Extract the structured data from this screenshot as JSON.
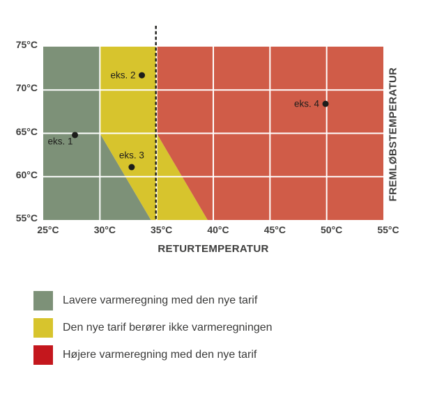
{
  "chart_data": {
    "type": "scatter",
    "title": "",
    "xlabel": "RETURTEMPERATUR",
    "ylabel": "FREMLØBSTEMPERATUR",
    "xlim": [
      25,
      55
    ],
    "ylim": [
      55,
      75
    ],
    "x_ticks": [
      {
        "v": 25,
        "label": "25°C"
      },
      {
        "v": 30,
        "label": "30°C"
      },
      {
        "v": 35,
        "label": "35°C"
      },
      {
        "v": 40,
        "label": "40°C"
      },
      {
        "v": 45,
        "label": "45°C"
      },
      {
        "v": 50,
        "label": "50°C"
      },
      {
        "v": 55,
        "label": "55°C"
      }
    ],
    "y_ticks": [
      {
        "v": 55,
        "label": "55°C"
      },
      {
        "v": 60,
        "label": "60°C"
      },
      {
        "v": 65,
        "label": "65°C"
      },
      {
        "v": 70,
        "label": "70°C"
      },
      {
        "v": 75,
        "label": "75°C"
      }
    ],
    "grid": {
      "color": "#FFFFFF",
      "inner_x": [
        30,
        35,
        40,
        45,
        50
      ],
      "inner_y": [
        60,
        65,
        70
      ]
    },
    "zones": [
      {
        "name": "lavere-varmeregning",
        "color": "#7D9178",
        "points": [
          [
            25,
            75
          ],
          [
            30,
            75
          ],
          [
            30,
            65
          ],
          [
            34.5,
            55
          ],
          [
            25,
            55
          ]
        ]
      },
      {
        "name": "uaendret-varmeregning",
        "color": "#D7C42D",
        "points": [
          [
            30,
            75
          ],
          [
            35,
            75
          ],
          [
            35,
            65
          ],
          [
            39.5,
            55
          ],
          [
            34.5,
            55
          ],
          [
            30,
            65
          ]
        ]
      },
      {
        "name": "hoejere-varmeregning",
        "color": "#D05C48",
        "points": [
          [
            35,
            75
          ],
          [
            55,
            75
          ],
          [
            55,
            55
          ],
          [
            39.5,
            55
          ],
          [
            35,
            65
          ]
        ]
      }
    ],
    "dashed_line": {
      "x": 35,
      "color": "#1D1D1B"
    },
    "points": [
      {
        "label": "eks. 1",
        "x": 27.8,
        "y": 64.8,
        "label_side": "below-left"
      },
      {
        "label": "eks. 2",
        "x": 33.7,
        "y": 71.7,
        "label_side": "left"
      },
      {
        "label": "eks. 3",
        "x": 32.8,
        "y": 61.1,
        "label_side": "above"
      },
      {
        "label": "eks. 4",
        "x": 49.9,
        "y": 68.4,
        "label_side": "left"
      }
    ],
    "legend_position": "below-chart-left"
  },
  "legend": {
    "items": [
      {
        "color": "#7D9178",
        "label": "Lavere varmeregning med den nye tarif"
      },
      {
        "color": "#D7C42D",
        "label": "Den nye tarif berører ikke varmeregningen"
      },
      {
        "color": "#C4171D",
        "label": "Højere varmeregning med den nye tarif"
      }
    ]
  },
  "colors": {
    "point": "#1D1D1B",
    "tick_text": "#3D3D3C",
    "axis_title_text": "#3D3D3C",
    "legend_text": "#3A3A39",
    "background": "#FFFFFF"
  }
}
